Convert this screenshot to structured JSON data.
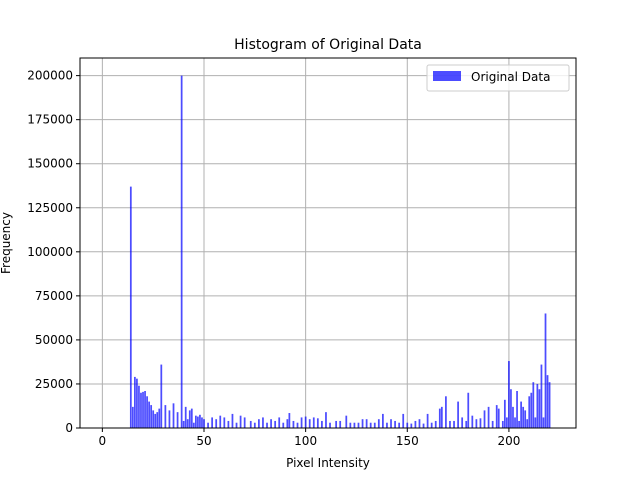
{
  "chart_data": {
    "type": "bar",
    "title": "Histogram of Original Data",
    "xlabel": "Pixel Intensity",
    "ylabel": "Frequency",
    "xlim": [
      -11,
      233
    ],
    "ylim": [
      0,
      210000
    ],
    "xticks": [
      0,
      50,
      100,
      150,
      200
    ],
    "yticks": [
      0,
      25000,
      50000,
      75000,
      100000,
      125000,
      150000,
      175000,
      200000
    ],
    "grid": true,
    "legend_position": "top-right",
    "bar_color": "#0000ff",
    "bar_opacity": 0.7,
    "bin_width": 0.86,
    "series": [
      {
        "name": "Original Data",
        "x": [
          14,
          15,
          16,
          17,
          18,
          19,
          20,
          21,
          22,
          23,
          24,
          25,
          26,
          27,
          28,
          29,
          31,
          33,
          35,
          37,
          39,
          40,
          41,
          42,
          43,
          44,
          45,
          46,
          47,
          48,
          49,
          50,
          52,
          54,
          56,
          58,
          60,
          62,
          64,
          66,
          68,
          70,
          73,
          75,
          77,
          79,
          81,
          83,
          85,
          87,
          89,
          91,
          92,
          94,
          96,
          98,
          100,
          102,
          104,
          106,
          108,
          110,
          112,
          115,
          117,
          120,
          122,
          124,
          126,
          128,
          130,
          132,
          134,
          136,
          138,
          140,
          142,
          144,
          146,
          148,
          150,
          152,
          154,
          156,
          158,
          160,
          162,
          164,
          166,
          167,
          169,
          171,
          173,
          175,
          177,
          179,
          180,
          182,
          184,
          186,
          188,
          190,
          192,
          194,
          195,
          197,
          198,
          199,
          200,
          201,
          202,
          203,
          204,
          205,
          206,
          207,
          208,
          209,
          210,
          211,
          212,
          213,
          214,
          215,
          216,
          217,
          218,
          219,
          220
        ],
        "values": [
          137000,
          12000,
          29000,
          28000,
          24000,
          20000,
          20500,
          21000,
          18000,
          15000,
          13000,
          10000,
          8000,
          9000,
          11000,
          36000,
          13000,
          10000,
          14000,
          9000,
          200000,
          4000,
          12000,
          5000,
          10000,
          11000,
          3000,
          7000,
          6500,
          7500,
          6000,
          5000,
          3000,
          6000,
          5000,
          7000,
          6000,
          4000,
          8000,
          3000,
          7000,
          6000,
          4000,
          3000,
          5000,
          6000,
          3000,
          5000,
          4000,
          6000,
          3000,
          5000,
          8500,
          4000,
          3000,
          6000,
          6500,
          5000,
          6000,
          5500,
          4000,
          9000,
          3000,
          4000,
          4000,
          7000,
          3000,
          3000,
          3000,
          5000,
          5000,
          3000,
          3000,
          5000,
          8000,
          3000,
          5000,
          4000,
          3000,
          8000,
          3000,
          2500,
          4000,
          5000,
          2500,
          8000,
          3000,
          4000,
          11000,
          12000,
          18000,
          4000,
          4000,
          15000,
          6000,
          4000,
          20000,
          7000,
          5000,
          5500,
          10000,
          12000,
          4000,
          13000,
          11000,
          4000,
          16000,
          6000,
          38000,
          22000,
          12000,
          6000,
          21000,
          4000,
          15000,
          12000,
          10000,
          5000,
          18000,
          20000,
          26000,
          6000,
          25000,
          22000,
          36000,
          6000,
          65000,
          30000,
          26000
        ]
      }
    ]
  }
}
